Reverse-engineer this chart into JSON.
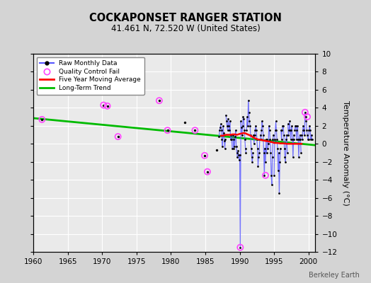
{
  "title": "COCKAPONSET RANGER STATION",
  "subtitle": "41.461 N, 72.520 W (United States)",
  "ylabel": "Temperature Anomaly (°C)",
  "watermark": "Berkeley Earth",
  "xlim": [
    1960,
    2001
  ],
  "ylim": [
    -12,
    10
  ],
  "yticks": [
    -12,
    -10,
    -8,
    -6,
    -4,
    -2,
    0,
    2,
    4,
    6,
    8,
    10
  ],
  "xticks": [
    1960,
    1965,
    1970,
    1975,
    1980,
    1985,
    1990,
    1995,
    2000
  ],
  "bg_color": "#d4d4d4",
  "plot_bg_color": "#eaeaea",
  "raw_color": "#5555ff",
  "raw_dot_color": "#000000",
  "qc_fail_color": "#ff44ff",
  "moving_avg_color": "#ff0000",
  "trend_color": "#00bb00",
  "trend_line": [
    [
      1960,
      2.85
    ],
    [
      2001,
      -0.15
    ]
  ],
  "moving_avg": [
    [
      1987.3,
      0.9
    ],
    [
      1987.6,
      0.9
    ],
    [
      1988.0,
      1.0
    ],
    [
      1988.3,
      1.0
    ],
    [
      1988.6,
      1.0
    ],
    [
      1989.0,
      1.05
    ],
    [
      1989.3,
      1.05
    ],
    [
      1989.6,
      1.0
    ],
    [
      1990.0,
      1.1
    ],
    [
      1990.3,
      1.15
    ],
    [
      1990.6,
      1.2
    ],
    [
      1990.9,
      1.15
    ],
    [
      1991.0,
      1.1
    ],
    [
      1991.3,
      1.0
    ],
    [
      1991.6,
      0.9
    ],
    [
      1991.9,
      0.75
    ],
    [
      1992.0,
      0.7
    ],
    [
      1992.3,
      0.6
    ],
    [
      1992.6,
      0.5
    ],
    [
      1992.9,
      0.45
    ],
    [
      1993.0,
      0.45
    ],
    [
      1993.3,
      0.4
    ],
    [
      1993.6,
      0.35
    ],
    [
      1993.9,
      0.3
    ],
    [
      1994.0,
      0.3
    ],
    [
      1994.3,
      0.25
    ],
    [
      1994.6,
      0.2
    ],
    [
      1994.9,
      0.15
    ],
    [
      1995.0,
      0.1
    ],
    [
      1995.3,
      0.1
    ],
    [
      1995.6,
      0.08
    ],
    [
      1995.9,
      0.05
    ],
    [
      1996.0,
      0.05
    ],
    [
      1996.3,
      0.05
    ],
    [
      1996.6,
      0.03
    ],
    [
      1996.9,
      0.0
    ],
    [
      1997.0,
      0.0
    ],
    [
      1997.3,
      0.0
    ],
    [
      1997.6,
      0.0
    ],
    [
      1997.9,
      0.0
    ],
    [
      1998.0,
      0.0
    ],
    [
      1998.5,
      0.0
    ],
    [
      1999.0,
      0.0
    ]
  ],
  "isolated_points": [
    [
      1961.25,
      2.7
    ],
    [
      1970.2,
      4.3
    ],
    [
      1970.75,
      4.2
    ],
    [
      1972.3,
      0.8
    ],
    [
      1978.3,
      4.8
    ],
    [
      1979.5,
      1.5
    ],
    [
      1982.0,
      2.4
    ],
    [
      1983.5,
      1.5
    ],
    [
      1984.9,
      -1.3
    ],
    [
      1985.3,
      -3.1
    ],
    [
      1986.6,
      -0.7
    ]
  ],
  "qc_fail_points": [
    [
      1961.25,
      2.7
    ],
    [
      1970.2,
      4.3
    ],
    [
      1970.75,
      4.2
    ],
    [
      1972.3,
      0.8
    ],
    [
      1978.3,
      4.8
    ],
    [
      1979.5,
      1.5
    ],
    [
      1983.5,
      1.5
    ],
    [
      1984.9,
      -1.3
    ],
    [
      1985.3,
      -3.1
    ],
    [
      1990.08,
      -11.5
    ],
    [
      1993.75,
      -3.5
    ],
    [
      1999.5,
      3.5
    ],
    [
      1999.83,
      3.0
    ]
  ],
  "connected_segments": [
    [
      [
        1987.0,
        1987.083,
        1987.167,
        1987.25,
        1987.333,
        1987.417,
        1987.5,
        1987.583,
        1987.667,
        1987.75,
        1987.833,
        1987.917
      ],
      [
        0.8,
        1.5,
        1.8,
        2.2,
        1.5,
        0.5,
        -0.3,
        2.0,
        1.2,
        0.3,
        -0.5,
        0.5
      ]
    ],
    [
      [
        1988.0,
        1988.083,
        1988.167,
        1988.25,
        1988.333,
        1988.417,
        1988.5,
        1988.583,
        1988.667,
        1988.75,
        1988.833,
        1988.917
      ],
      [
        3.2,
        2.5,
        2.0,
        1.5,
        2.8,
        2.0,
        1.5,
        2.5,
        0.5,
        1.0,
        0.5,
        -0.5
      ]
    ],
    [
      [
        1989.0,
        1989.083,
        1989.167,
        1989.25,
        1989.333,
        1989.417,
        1989.5,
        1989.583,
        1989.667,
        1989.75,
        1989.833,
        1989.917
      ],
      [
        1.0,
        -0.5,
        0.5,
        -0.3,
        0.8,
        1.5,
        -0.3,
        -1.0,
        -1.5,
        -0.8,
        -1.2,
        -1.8
      ]
    ],
    [
      [
        1990.0,
        1990.083,
        1990.167,
        1990.25,
        1990.333,
        1990.417,
        1990.5,
        1990.583,
        1990.667,
        1990.75,
        1990.833,
        1990.917
      ],
      [
        -1.2,
        -11.5,
        2.5,
        1.8,
        1.0,
        2.0,
        3.0,
        2.8,
        1.5,
        0.5,
        -0.5,
        -1.0
      ]
    ],
    [
      [
        1991.0,
        1991.083,
        1991.167,
        1991.25,
        1991.333,
        1991.417,
        1991.5,
        1991.583,
        1991.667,
        1991.75,
        1991.833,
        1991.917
      ],
      [
        1.5,
        3.0,
        2.0,
        4.8,
        3.5,
        2.5,
        2.0,
        1.0,
        -0.5,
        -1.5,
        -2.0,
        -1.0
      ]
    ],
    [
      [
        1992.0,
        1992.083,
        1992.167,
        1992.25,
        1992.333,
        1992.417,
        1992.5,
        1992.583,
        1992.667,
        1992.75,
        1992.833,
        1992.917
      ],
      [
        1.0,
        0.0,
        1.0,
        1.5,
        2.0,
        1.5,
        0.5,
        -0.5,
        -2.5,
        -1.5,
        -1.0,
        0.5
      ]
    ],
    [
      [
        1993.0,
        1993.083,
        1993.167,
        1993.25,
        1993.333,
        1993.417,
        1993.5,
        1993.583,
        1993.667,
        1993.75,
        1993.833,
        1993.917
      ],
      [
        1.0,
        0.5,
        1.5,
        2.5,
        2.0,
        1.0,
        -1.0,
        -3.5,
        -0.5,
        -2.0,
        0.5,
        -1.0
      ]
    ],
    [
      [
        1994.0,
        1994.083,
        1994.167,
        1994.25,
        1994.333,
        1994.417,
        1994.5,
        1994.583,
        1994.667,
        1994.75,
        1994.833,
        1994.917
      ],
      [
        0.5,
        -0.5,
        0.0,
        2.0,
        1.5,
        0.5,
        -1.0,
        -3.5,
        -4.5,
        -1.5,
        0.5,
        1.0
      ]
    ],
    [
      [
        1995.0,
        1995.083,
        1995.167,
        1995.25,
        1995.333,
        1995.417,
        1995.5,
        1995.583,
        1995.667,
        1995.75,
        1995.833,
        1995.917
      ],
      [
        -3.5,
        0.5,
        1.5,
        2.5,
        1.5,
        0.5,
        -0.5,
        -3.0,
        -1.0,
        -5.5,
        -2.0,
        -0.5
      ]
    ],
    [
      [
        1996.0,
        1996.083,
        1996.167,
        1996.25,
        1996.333,
        1996.417,
        1996.5,
        1996.583,
        1996.667,
        1996.75,
        1996.833,
        1996.917
      ],
      [
        1.5,
        0.5,
        1.5,
        2.0,
        2.0,
        1.0,
        -0.5,
        -1.5,
        -2.0,
        0.5,
        1.0,
        -1.0
      ]
    ],
    [
      [
        1997.0,
        1997.083,
        1997.167,
        1997.25,
        1997.333,
        1997.417,
        1997.5,
        1997.583,
        1997.667,
        1997.75,
        1997.833,
        1997.917
      ],
      [
        2.2,
        1.0,
        1.5,
        2.5,
        1.5,
        0.5,
        1.5,
        2.0,
        0.5,
        -1.5,
        0.5,
        1.0
      ]
    ],
    [
      [
        1998.0,
        1998.083,
        1998.167,
        1998.25,
        1998.333,
        1998.417,
        1998.5,
        1998.583,
        1998.667,
        1998.75,
        1998.833,
        1998.917
      ],
      [
        1.5,
        2.0,
        2.0,
        0.5,
        1.5,
        2.0,
        0.5,
        -1.5,
        0.5,
        1.0,
        0.5,
        -1.0
      ]
    ],
    [
      [
        1999.0,
        1999.083,
        1999.167,
        1999.25,
        1999.333,
        1999.417,
        1999.5,
        1999.583,
        1999.667,
        1999.75,
        1999.833,
        1999.917
      ],
      [
        1.0,
        0.5,
        1.5,
        2.0,
        1.5,
        1.0,
        3.5,
        3.0,
        2.5,
        1.5,
        1.0,
        0.5
      ]
    ],
    [
      [
        2000.0,
        2000.083,
        2000.167,
        2000.25,
        2000.333,
        2000.417,
        2000.5
      ],
      [
        0.5,
        1.5,
        2.0,
        1.5,
        0.5,
        1.0,
        0.5
      ]
    ]
  ]
}
